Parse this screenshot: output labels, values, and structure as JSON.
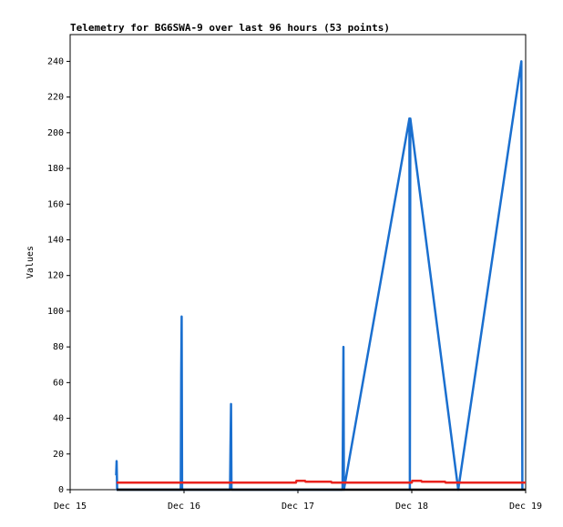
{
  "chart_data": {
    "type": "line",
    "title": "Telemetry for BG6SWA-9 over last 96 hours (53 points)",
    "y_label": "Values",
    "xlim": [
      0,
      96
    ],
    "xticks": [
      {
        "value": 0,
        "label": "Dec 15"
      },
      {
        "value": 24,
        "label": "Dec 16"
      },
      {
        "value": 48,
        "label": "Dec 17"
      },
      {
        "value": 72,
        "label": "Dec 18"
      },
      {
        "value": 96,
        "label": "Dec 19"
      }
    ],
    "ylim": [
      0,
      255
    ],
    "yticks": [
      0,
      20,
      40,
      60,
      80,
      100,
      120,
      140,
      160,
      180,
      200,
      220,
      240
    ],
    "series": [
      {
        "color": "#1a6fcf",
        "x": [
          9.7,
          9.8,
          9.9,
          23.3,
          23.4,
          23.5,
          23.6,
          33.7,
          33.8,
          33.9,
          34.0,
          57.4,
          57.5,
          57.6,
          57.7,
          71.5,
          71.6,
          71.7,
          81.8,
          95.1,
          95.2,
          95.3
        ],
        "values": [
          8,
          16,
          0,
          0,
          64,
          97,
          0,
          0,
          24,
          48,
          0,
          0,
          40,
          80,
          0,
          208,
          0,
          208,
          0,
          240,
          120,
          0
        ]
      },
      {
        "color": "#e8231e",
        "x": [
          9.8,
          47.6,
          47.7,
          49.5,
          49.6,
          55.0,
          55.1,
          72.0,
          72.1,
          74.0,
          74.1,
          79.0,
          79.1,
          96.0
        ],
        "values": [
          4,
          4,
          5,
          5,
          4.5,
          4.5,
          4,
          4,
          5,
          5,
          4.5,
          4.5,
          4,
          4
        ]
      },
      {
        "color": "#000000",
        "x": [
          9.8,
          96.0
        ],
        "values": [
          0,
          0
        ]
      }
    ]
  }
}
